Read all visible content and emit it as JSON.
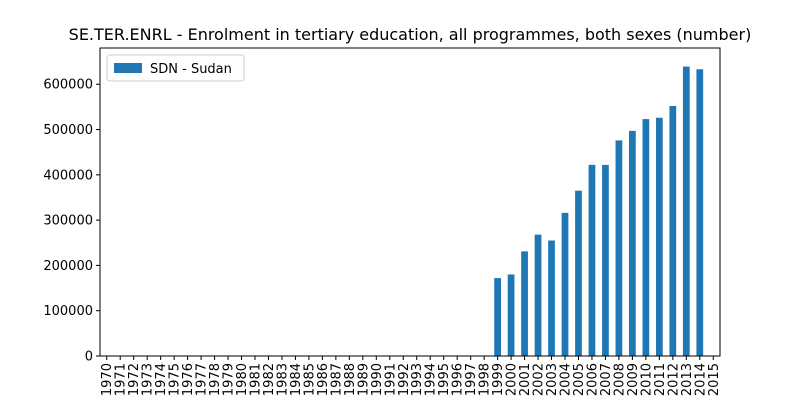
{
  "chart_data": {
    "type": "bar",
    "title": "SE.TER.ENRL - Enrolment in tertiary education, all programmes, both sexes (number)",
    "xlabel": "",
    "ylabel": "",
    "categories": [
      "1970",
      "1971",
      "1972",
      "1973",
      "1974",
      "1975",
      "1976",
      "1977",
      "1978",
      "1979",
      "1980",
      "1981",
      "1982",
      "1983",
      "1984",
      "1985",
      "1986",
      "1987",
      "1988",
      "1989",
      "1990",
      "1991",
      "1992",
      "1993",
      "1994",
      "1995",
      "1996",
      "1997",
      "1998",
      "1999",
      "2000",
      "2001",
      "2002",
      "2003",
      "2004",
      "2005",
      "2006",
      "2007",
      "2008",
      "2009",
      "2010",
      "2011",
      "2012",
      "2013",
      "2014",
      "2015"
    ],
    "series": [
      {
        "name": "SDN - Sudan",
        "color": "#1f77b4",
        "values": [
          null,
          null,
          null,
          null,
          null,
          null,
          null,
          null,
          null,
          null,
          null,
          null,
          null,
          null,
          null,
          null,
          null,
          null,
          null,
          null,
          null,
          null,
          null,
          null,
          null,
          null,
          null,
          null,
          null,
          172000,
          180000,
          231000,
          268000,
          255000,
          316000,
          365000,
          422000,
          422000,
          476000,
          497000,
          523000,
          526000,
          552000,
          639000,
          633000,
          null
        ]
      }
    ],
    "ylim": [
      0,
      680000
    ],
    "yticks": [
      0,
      100000,
      200000,
      300000,
      400000,
      500000,
      600000
    ],
    "grid": false,
    "legend": "top-left"
  }
}
